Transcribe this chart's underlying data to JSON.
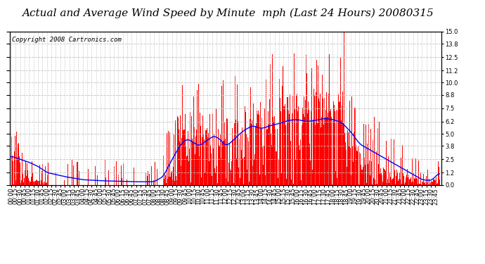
{
  "title": "Actual and Average Wind Speed by Minute  mph (Last 24 Hours) 20080315",
  "copyright": "Copyright 2008 Cartronics.com",
  "bg_color": "#ffffff",
  "plot_bg_color": "#ffffff",
  "bar_color": "#ff0000",
  "line_color": "#0000ff",
  "grid_color": "#c0c0c0",
  "ylim": [
    0,
    15.0
  ],
  "yticks": [
    0.0,
    1.2,
    2.5,
    3.8,
    5.0,
    6.2,
    7.5,
    8.8,
    10.0,
    11.2,
    12.5,
    13.8,
    15.0
  ],
  "n_minutes": 1440,
  "title_fontsize": 11,
  "copyright_fontsize": 6.5,
  "tick_fontsize": 6
}
